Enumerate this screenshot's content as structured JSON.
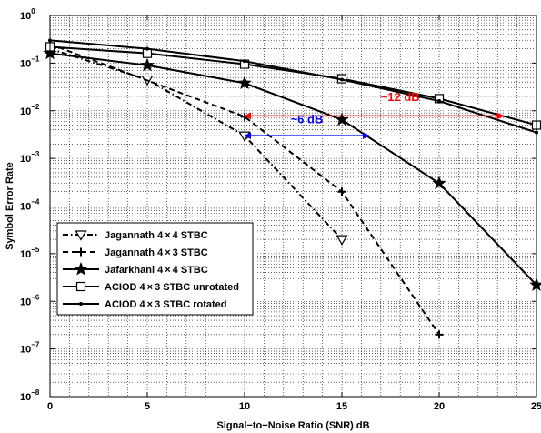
{
  "chart_data": {
    "type": "line",
    "xlabel": "Signal−to−Noise Ratio (SNR) dB",
    "ylabel": "Symbol Error Rate",
    "xlim": [
      0,
      25
    ],
    "ylim_exponent": [
      -8,
      0
    ],
    "yscale": "log",
    "grid": true,
    "legend_position": "bottom-left",
    "x_ticks": [
      "0",
      "5",
      "10",
      "15",
      "20",
      "25"
    ],
    "y_tick_base": "10",
    "y_tick_exponents": [
      "0",
      "−1",
      "−2",
      "−3",
      "−4",
      "−5",
      "−6",
      "−7",
      "−8"
    ],
    "series": [
      {
        "name": "Jagannath 4×4 STBC",
        "legend_html": [
          "Jagannath 4",
          "×",
          "4 STBC"
        ],
        "marker": "triangle-down",
        "dash": "dashdot",
        "x": [
          0,
          5,
          10,
          15
        ],
        "y": [
          0.2,
          0.045,
          0.003,
          2e-05
        ]
      },
      {
        "name": "Jagannath 4×3 STBC",
        "legend_html": [
          "Jagannath 4",
          "×",
          "3 STBC"
        ],
        "marker": "plus",
        "dash": "dashed",
        "x": [
          0,
          10,
          15,
          20
        ],
        "y": [
          0.25,
          0.0075,
          0.0002,
          2e-07
        ]
      },
      {
        "name": "Jafarkhani 4×4 STBC",
        "legend_html": [
          "Jafarkhani 4",
          "×",
          "4 STBC"
        ],
        "marker": "star",
        "dash": "solid",
        "x": [
          0,
          5,
          10,
          15,
          20,
          25
        ],
        "y": [
          0.16,
          0.09,
          0.038,
          0.0065,
          0.0003,
          2.2e-06
        ]
      },
      {
        "name": "ACIOD 4×3 STBC unrotated",
        "legend_html": [
          "ACIOD 4",
          "×",
          "3 STBC unrotated"
        ],
        "marker": "square",
        "dash": "solid",
        "x": [
          0,
          5,
          10,
          15,
          20,
          25
        ],
        "y": [
          0.22,
          0.16,
          0.095,
          0.047,
          0.018,
          0.005
        ]
      },
      {
        "name": "ACIOD 4×3 STBC rotated",
        "legend_html": [
          "ACIOD 4",
          "×",
          "3 STBC rotated"
        ],
        "marker": "dot",
        "dash": "solid",
        "x": [
          0,
          5,
          10,
          15,
          20,
          25
        ],
        "y": [
          0.3,
          0.2,
          0.11,
          0.045,
          0.016,
          0.0035
        ]
      }
    ],
    "annotations": [
      {
        "text": "~12 dB",
        "color": "#ff0000",
        "x1": 10,
        "x2": 23.3,
        "y": 0.0078,
        "label_x": 18,
        "label_y": 0.016
      },
      {
        "text": "~6 dB",
        "color": "#0000ff",
        "x1": 10,
        "x2": 16.4,
        "y": 0.003,
        "label_x": 13.2,
        "label_y": 0.0055
      }
    ]
  }
}
